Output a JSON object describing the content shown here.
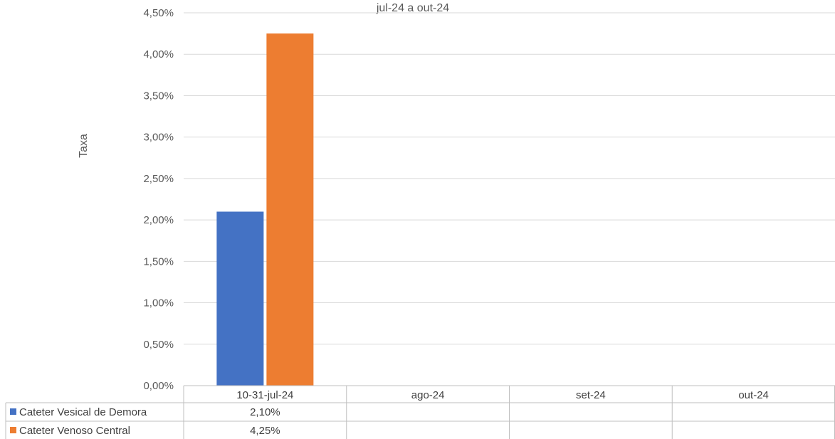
{
  "chart_data": {
    "type": "bar",
    "title": "jul-24 a out-24",
    "xlabel": "",
    "ylabel": "Taxa",
    "ylim": [
      0,
      4.5
    ],
    "y_ticks": [
      "0,00%",
      "0,50%",
      "1,00%",
      "1,50%",
      "2,00%",
      "2,50%",
      "3,00%",
      "3,50%",
      "4,00%",
      "4,50%"
    ],
    "categories": [
      "10-31-jul-24",
      "ago-24",
      "set-24",
      "out-24"
    ],
    "series": [
      {
        "name": "Cateter Vesical de Demora",
        "color": "#4472c4",
        "values": [
          2.1,
          null,
          null,
          null
        ],
        "labels": [
          "2,10%",
          "",
          "",
          ""
        ]
      },
      {
        "name": "Cateter Venoso Central",
        "color": "#ed7d31",
        "values": [
          4.25,
          null,
          null,
          null
        ],
        "labels": [
          "4,25%",
          "",
          "",
          ""
        ]
      }
    ],
    "grid": true,
    "legend": "data-table",
    "data_table": true
  }
}
